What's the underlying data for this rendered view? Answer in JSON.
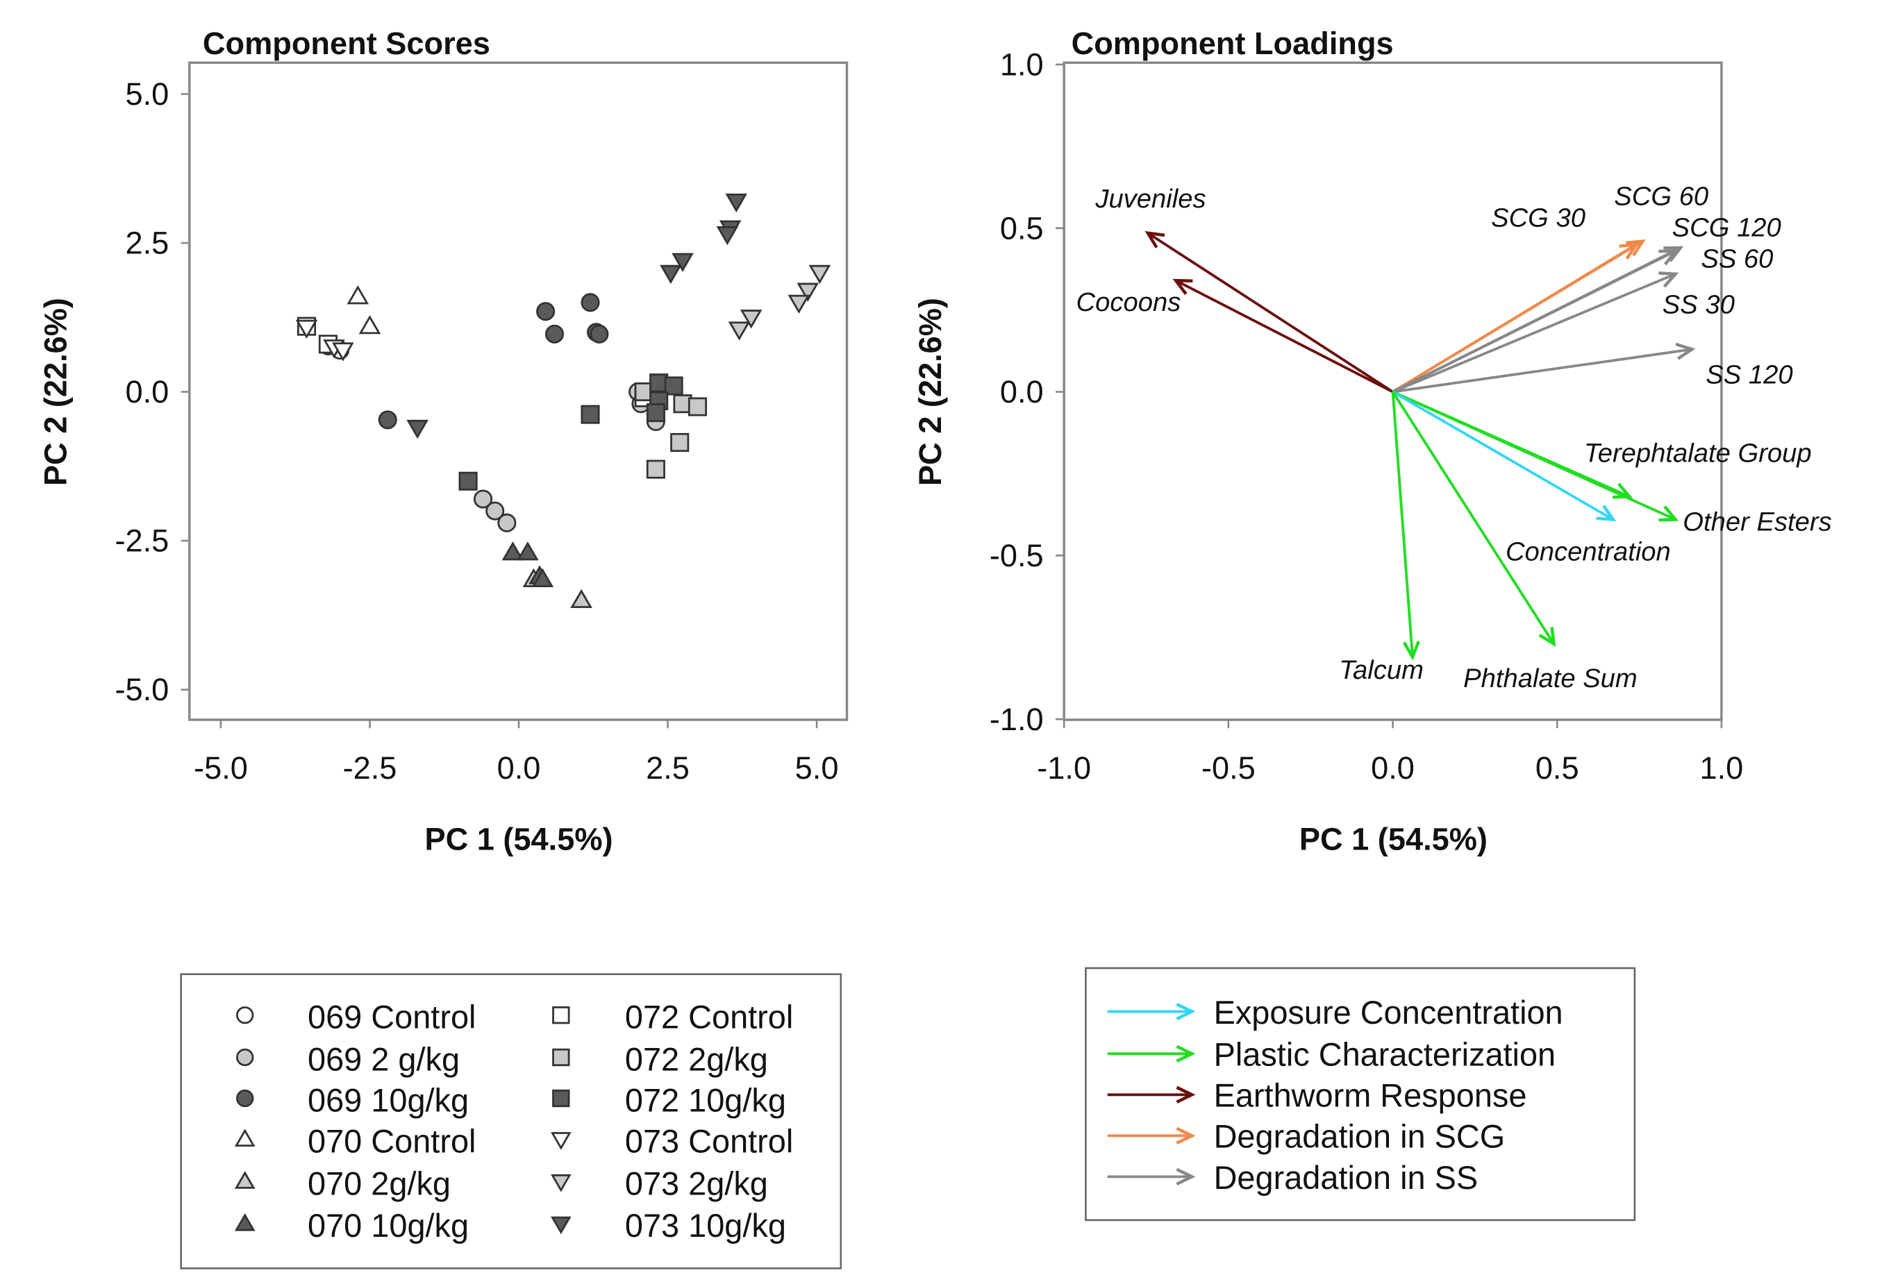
{
  "chart_data": [
    {
      "type": "scatter",
      "title": "Component Scores",
      "xlabel": "PC 1 (54.5%)",
      "ylabel": "PC 2 (22.6%)",
      "xlim": [
        -5.5,
        5.5
      ],
      "ylim": [
        -5.5,
        5.5
      ],
      "xticks": [
        "-5.0",
        "-2.5",
        "0.0",
        "2.5",
        "5.0"
      ],
      "yticks": [
        "5.0",
        "2.5",
        "0.0",
        "-2.5",
        "-5.0"
      ],
      "grid": false,
      "legend_placement": "below",
      "series": [
        {
          "name": "069 Control",
          "marker": "circle",
          "fill": "#ffffff",
          "points": [
            [
              -3.2,
              0.77
            ],
            [
              -3.0,
              0.7
            ]
          ]
        },
        {
          "name": "069 2 g/kg",
          "marker": "circle",
          "fill": "#c8c8c8",
          "points": [
            [
              2.0,
              0.0
            ],
            [
              2.05,
              -0.2
            ],
            [
              2.3,
              -0.5
            ],
            [
              -0.6,
              -1.8
            ],
            [
              -0.4,
              -2.0
            ],
            [
              -0.2,
              -2.2
            ]
          ]
        },
        {
          "name": "069 10g/kg",
          "marker": "circle",
          "fill": "#5a5a5a",
          "points": [
            [
              0.45,
              1.35
            ],
            [
              1.2,
              1.5
            ],
            [
              0.6,
              0.97
            ],
            [
              1.3,
              1.0
            ],
            [
              1.35,
              0.97
            ],
            [
              -2.2,
              -0.47
            ]
          ]
        },
        {
          "name": "070 Control",
          "marker": "triangle-up",
          "fill": "#ffffff",
          "points": [
            [
              -2.7,
              1.6
            ],
            [
              -2.5,
              1.1
            ]
          ]
        },
        {
          "name": "070 2g/kg",
          "marker": "triangle-up",
          "fill": "#c8c8c8",
          "points": [
            [
              0.25,
              -3.15
            ],
            [
              1.05,
              -3.5
            ]
          ]
        },
        {
          "name": "070 10g/kg",
          "marker": "triangle-up",
          "fill": "#5a5a5a",
          "points": [
            [
              -0.1,
              -2.7
            ],
            [
              0.15,
              -2.7
            ],
            [
              0.35,
              -3.1
            ],
            [
              0.4,
              -3.15
            ]
          ]
        },
        {
          "name": "072 Control",
          "marker": "square",
          "fill": "#ffffff",
          "points": [
            [
              -3.56,
              1.1
            ],
            [
              -3.2,
              0.8
            ],
            [
              2.1,
              -0.1
            ]
          ]
        },
        {
          "name": "072 2g/kg",
          "marker": "square",
          "fill": "#c8c8c8",
          "points": [
            [
              2.1,
              0.0
            ],
            [
              2.75,
              -0.2
            ],
            [
              3.0,
              -0.25
            ],
            [
              2.7,
              -0.85
            ],
            [
              2.3,
              -1.3
            ]
          ]
        },
        {
          "name": "072 10g/kg",
          "marker": "square",
          "fill": "#5a5a5a",
          "points": [
            [
              2.35,
              0.15
            ],
            [
              2.6,
              0.1
            ],
            [
              2.35,
              -0.15
            ],
            [
              2.3,
              -0.35
            ],
            [
              1.2,
              -0.38
            ],
            [
              -0.85,
              -1.5
            ]
          ]
        },
        {
          "name": "073 Control",
          "marker": "triangle-down",
          "fill": "#ffffff",
          "points": [
            [
              -3.56,
              1.08
            ],
            [
              -3.1,
              0.75
            ],
            [
              -2.95,
              0.7
            ]
          ]
        },
        {
          "name": "073 2g/kg",
          "marker": "triangle-down",
          "fill": "#c8c8c8",
          "points": [
            [
              5.05,
              2.0
            ],
            [
              4.85,
              1.7
            ],
            [
              4.7,
              1.5
            ],
            [
              3.9,
              1.25
            ],
            [
              3.7,
              1.05
            ]
          ]
        },
        {
          "name": "073 10g/kg",
          "marker": "triangle-down",
          "fill": "#5a5a5a",
          "points": [
            [
              3.65,
              3.2
            ],
            [
              3.55,
              2.75
            ],
            [
              3.5,
              2.65
            ],
            [
              2.75,
              2.2
            ],
            [
              2.55,
              2.0
            ],
            [
              -1.7,
              -0.6
            ]
          ]
        }
      ]
    },
    {
      "type": "biplot-loadings",
      "title": "Component Loadings",
      "xlabel": "PC 1 (54.5%)",
      "ylabel": "PC 2 (22.6%)",
      "xlim": [
        -1.0,
        1.0
      ],
      "ylim": [
        -1.0,
        1.0
      ],
      "xticks": [
        "-1.0",
        "-0.5",
        "0.0",
        "0.5",
        "1.0"
      ],
      "yticks": [
        "1.0",
        "0.5",
        "0.0",
        "-0.5",
        "-1.0"
      ],
      "grid": false,
      "legend_placement": "below",
      "groups": [
        {
          "name": "Exposure Concentration",
          "color": "#33d6f0"
        },
        {
          "name": "Plastic Characterization",
          "color": "#22dd22"
        },
        {
          "name": "Earthworm Response",
          "color": "#6b0f0f"
        },
        {
          "name": "Degradation in SCG",
          "color": "#f08a4b"
        },
        {
          "name": "Degradation in SS",
          "color": "#888888"
        }
      ],
      "vectors": [
        {
          "label": "Juveniles",
          "group": 2,
          "x": -0.745,
          "y": 0.485
        },
        {
          "label": "Cocoons",
          "group": 2,
          "x": -0.66,
          "y": 0.34
        },
        {
          "label": "SCG 30",
          "group": 3,
          "x": 0.74,
          "y": 0.45
        },
        {
          "label": "SCG 60",
          "group": 3,
          "x": 0.76,
          "y": 0.46
        },
        {
          "label": "SCG 120",
          "group": 4,
          "x": 0.86,
          "y": 0.43
        },
        {
          "label": "SS 60",
          "group": 4,
          "x": 0.875,
          "y": 0.44
        },
        {
          "label": "SS 30",
          "group": 4,
          "x": 0.86,
          "y": 0.36
        },
        {
          "label": "SS 120",
          "group": 4,
          "x": 0.91,
          "y": 0.13
        },
        {
          "label": "Terephtalate Group",
          "group": 1,
          "x": 0.72,
          "y": -0.32
        },
        {
          "label": "Other Esters",
          "group": 1,
          "x": 0.86,
          "y": -0.39
        },
        {
          "label": "Concentration",
          "group": 0,
          "x": 0.67,
          "y": -0.39
        },
        {
          "label": "Talcum",
          "group": 1,
          "x": 0.06,
          "y": -0.81
        },
        {
          "label": "Phthalate Sum",
          "group": 1,
          "x": 0.49,
          "y": -0.77
        }
      ]
    }
  ]
}
